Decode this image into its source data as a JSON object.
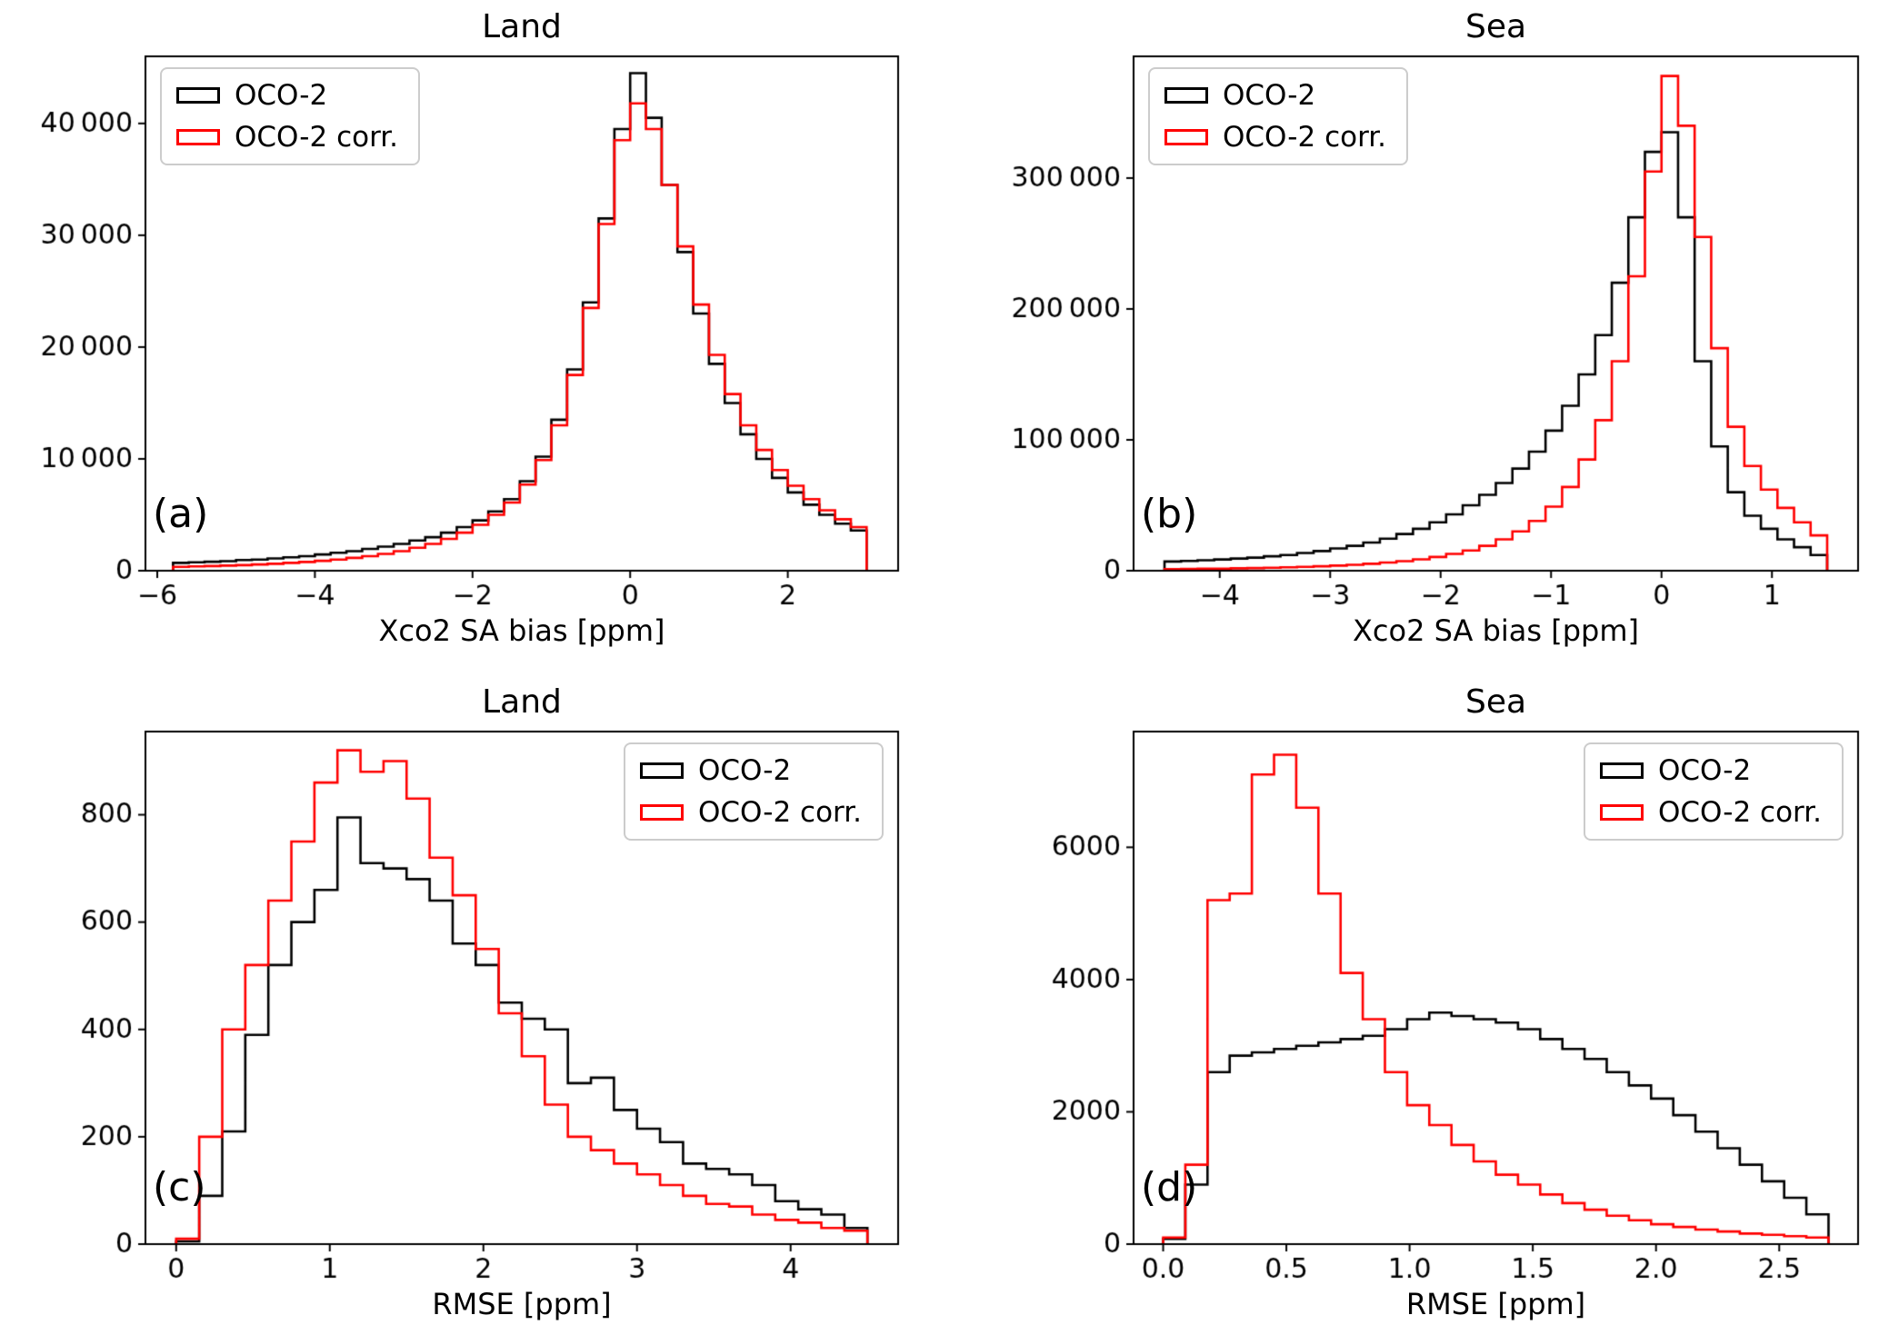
{
  "colors": {
    "background": "#ffffff",
    "axis": "#000000",
    "oco2": "#000000",
    "oco2_corr": "#ff0000",
    "legend_border": "#cccccc"
  },
  "legend_labels": [
    "OCO-2",
    "OCO-2 corr."
  ],
  "chart_data": [
    {
      "id": "a",
      "panel_label": "(a)",
      "title": "Land",
      "type": "line",
      "subtype": "step-histogram",
      "xlabel": "Xco2 SA bias [ppm]",
      "ylabel": "",
      "grid": false,
      "legend_position": "upper left",
      "xlim": [
        -6.15,
        3.4
      ],
      "ylim": [
        0,
        46000
      ],
      "xticks": [
        -6,
        -4,
        -2,
        0,
        2
      ],
      "xtick_labels": [
        "−6",
        "−4",
        "−2",
        "0",
        "2"
      ],
      "yticks": [
        0,
        10000,
        20000,
        30000,
        40000
      ],
      "ytick_labels": [
        "0",
        "10 000",
        "20 000",
        "30 000",
        "40 000"
      ],
      "bin_start": -5.8,
      "bin_width": 0.2,
      "series": [
        {
          "name": "OCO-2",
          "color": "#000000",
          "counts": [
            700,
            750,
            800,
            850,
            950,
            1000,
            1100,
            1200,
            1300,
            1450,
            1600,
            1750,
            1950,
            2150,
            2400,
            2700,
            3000,
            3400,
            3900,
            4500,
            5300,
            6400,
            8000,
            10200,
            13500,
            18000,
            24000,
            31500,
            39500,
            44500,
            40500,
            34500,
            28500,
            23000,
            18500,
            15000,
            12200,
            10000,
            8300,
            7000,
            5900,
            5000,
            4200,
            3600
          ]
        },
        {
          "name": "OCO-2 corr.",
          "color": "#ff0000",
          "counts": [
            350,
            380,
            420,
            460,
            500,
            560,
            620,
            700,
            780,
            880,
            1000,
            1150,
            1300,
            1500,
            1750,
            2050,
            2400,
            2850,
            3400,
            4100,
            5000,
            6100,
            7700,
            9900,
            13000,
            17500,
            23500,
            31000,
            38500,
            41800,
            39500,
            34500,
            29000,
            23800,
            19300,
            15800,
            13000,
            10800,
            9000,
            7600,
            6400,
            5400,
            4600,
            3900
          ]
        }
      ]
    },
    {
      "id": "b",
      "panel_label": "(b)",
      "title": "Sea",
      "type": "line",
      "subtype": "step-histogram",
      "xlabel": "Xco2 SA bias [ppm]",
      "ylabel": "",
      "grid": false,
      "legend_position": "upper left",
      "xlim": [
        -4.78,
        1.78
      ],
      "ylim": [
        0,
        393000
      ],
      "xticks": [
        -4,
        -3,
        -2,
        -1,
        0,
        1
      ],
      "xtick_labels": [
        "−4",
        "−3",
        "−2",
        "−1",
        "0",
        "1"
      ],
      "yticks": [
        0,
        100000,
        200000,
        300000
      ],
      "ytick_labels": [
        "0",
        "100 000",
        "200 000",
        "300 000"
      ],
      "bin_start": -4.5,
      "bin_width": 0.15,
      "series": [
        {
          "name": "OCO-2",
          "color": "#000000",
          "counts": [
            7000,
            7500,
            8000,
            8600,
            9300,
            10000,
            11000,
            12000,
            13500,
            15000,
            17000,
            19000,
            21500,
            24500,
            28000,
            32000,
            37000,
            43000,
            50000,
            58000,
            67000,
            78000,
            91000,
            107000,
            126000,
            150000,
            180000,
            220000,
            270000,
            320000,
            335000,
            270000,
            160000,
            95000,
            60000,
            42000,
            32000,
            24000,
            18000,
            12000
          ]
        },
        {
          "name": "OCO-2 corr.",
          "color": "#ff0000",
          "counts": [
            1200,
            1300,
            1450,
            1600,
            1800,
            2000,
            2300,
            2600,
            3000,
            3400,
            3900,
            4500,
            5300,
            6200,
            7300,
            8700,
            10500,
            12800,
            15500,
            19000,
            24000,
            30000,
            38000,
            49000,
            64000,
            85000,
            115000,
            160000,
            225000,
            305000,
            378000,
            340000,
            255000,
            170000,
            110000,
            80000,
            62000,
            48000,
            37000,
            27000
          ]
        }
      ]
    },
    {
      "id": "c",
      "panel_label": "(c)",
      "title": "Land",
      "type": "line",
      "subtype": "step-histogram",
      "xlabel": "RMSE [ppm]",
      "ylabel": "",
      "grid": false,
      "legend_position": "upper right",
      "xlim": [
        -0.2,
        4.7
      ],
      "ylim": [
        0,
        955
      ],
      "xticks": [
        0,
        1,
        2,
        3,
        4
      ],
      "xtick_labels": [
        "0",
        "1",
        "2",
        "3",
        "4"
      ],
      "yticks": [
        0,
        200,
        400,
        600,
        800
      ],
      "ytick_labels": [
        "0",
        "200",
        "400",
        "600",
        "800"
      ],
      "bin_start": 0,
      "bin_width": 0.15,
      "series": [
        {
          "name": "OCO-2",
          "color": "#000000",
          "counts": [
            5,
            90,
            210,
            390,
            520,
            600,
            660,
            795,
            710,
            700,
            680,
            640,
            560,
            520,
            450,
            420,
            400,
            300,
            310,
            250,
            215,
            190,
            150,
            140,
            130,
            110,
            80,
            65,
            55,
            30
          ]
        },
        {
          "name": "OCO-2 corr.",
          "color": "#ff0000",
          "counts": [
            10,
            200,
            400,
            520,
            640,
            750,
            860,
            920,
            880,
            900,
            830,
            720,
            650,
            550,
            430,
            350,
            260,
            200,
            175,
            150,
            130,
            110,
            90,
            75,
            70,
            55,
            45,
            40,
            30,
            25
          ]
        }
      ]
    },
    {
      "id": "d",
      "panel_label": "(d)",
      "title": "Sea",
      "type": "line",
      "subtype": "step-histogram",
      "xlabel": "RMSE [ppm]",
      "ylabel": "",
      "grid": false,
      "legend_position": "upper right",
      "xlim": [
        -0.12,
        2.82
      ],
      "ylim": [
        0,
        7750
      ],
      "xticks": [
        0,
        0.5,
        1,
        1.5,
        2,
        2.5
      ],
      "xtick_labels": [
        "0.0",
        "0.5",
        "1.0",
        "1.5",
        "2.0",
        "2.5"
      ],
      "yticks": [
        0,
        2000,
        4000,
        6000
      ],
      "ytick_labels": [
        "0",
        "2000",
        "4000",
        "6000"
      ],
      "bin_start": 0,
      "bin_width": 0.09,
      "series": [
        {
          "name": "OCO-2",
          "color": "#000000",
          "counts": [
            80,
            900,
            2600,
            2850,
            2900,
            2950,
            3000,
            3050,
            3100,
            3150,
            3250,
            3400,
            3500,
            3450,
            3400,
            3350,
            3250,
            3100,
            2950,
            2800,
            2600,
            2400,
            2200,
            1950,
            1700,
            1450,
            1200,
            950,
            700,
            450
          ]
        },
        {
          "name": "OCO-2 corr.",
          "color": "#ff0000",
          "counts": [
            100,
            1200,
            5200,
            5300,
            7100,
            7400,
            6600,
            5300,
            4100,
            3400,
            2600,
            2100,
            1800,
            1500,
            1250,
            1050,
            900,
            750,
            620,
            520,
            430,
            360,
            300,
            260,
            220,
            190,
            160,
            140,
            120,
            100
          ]
        }
      ]
    }
  ]
}
